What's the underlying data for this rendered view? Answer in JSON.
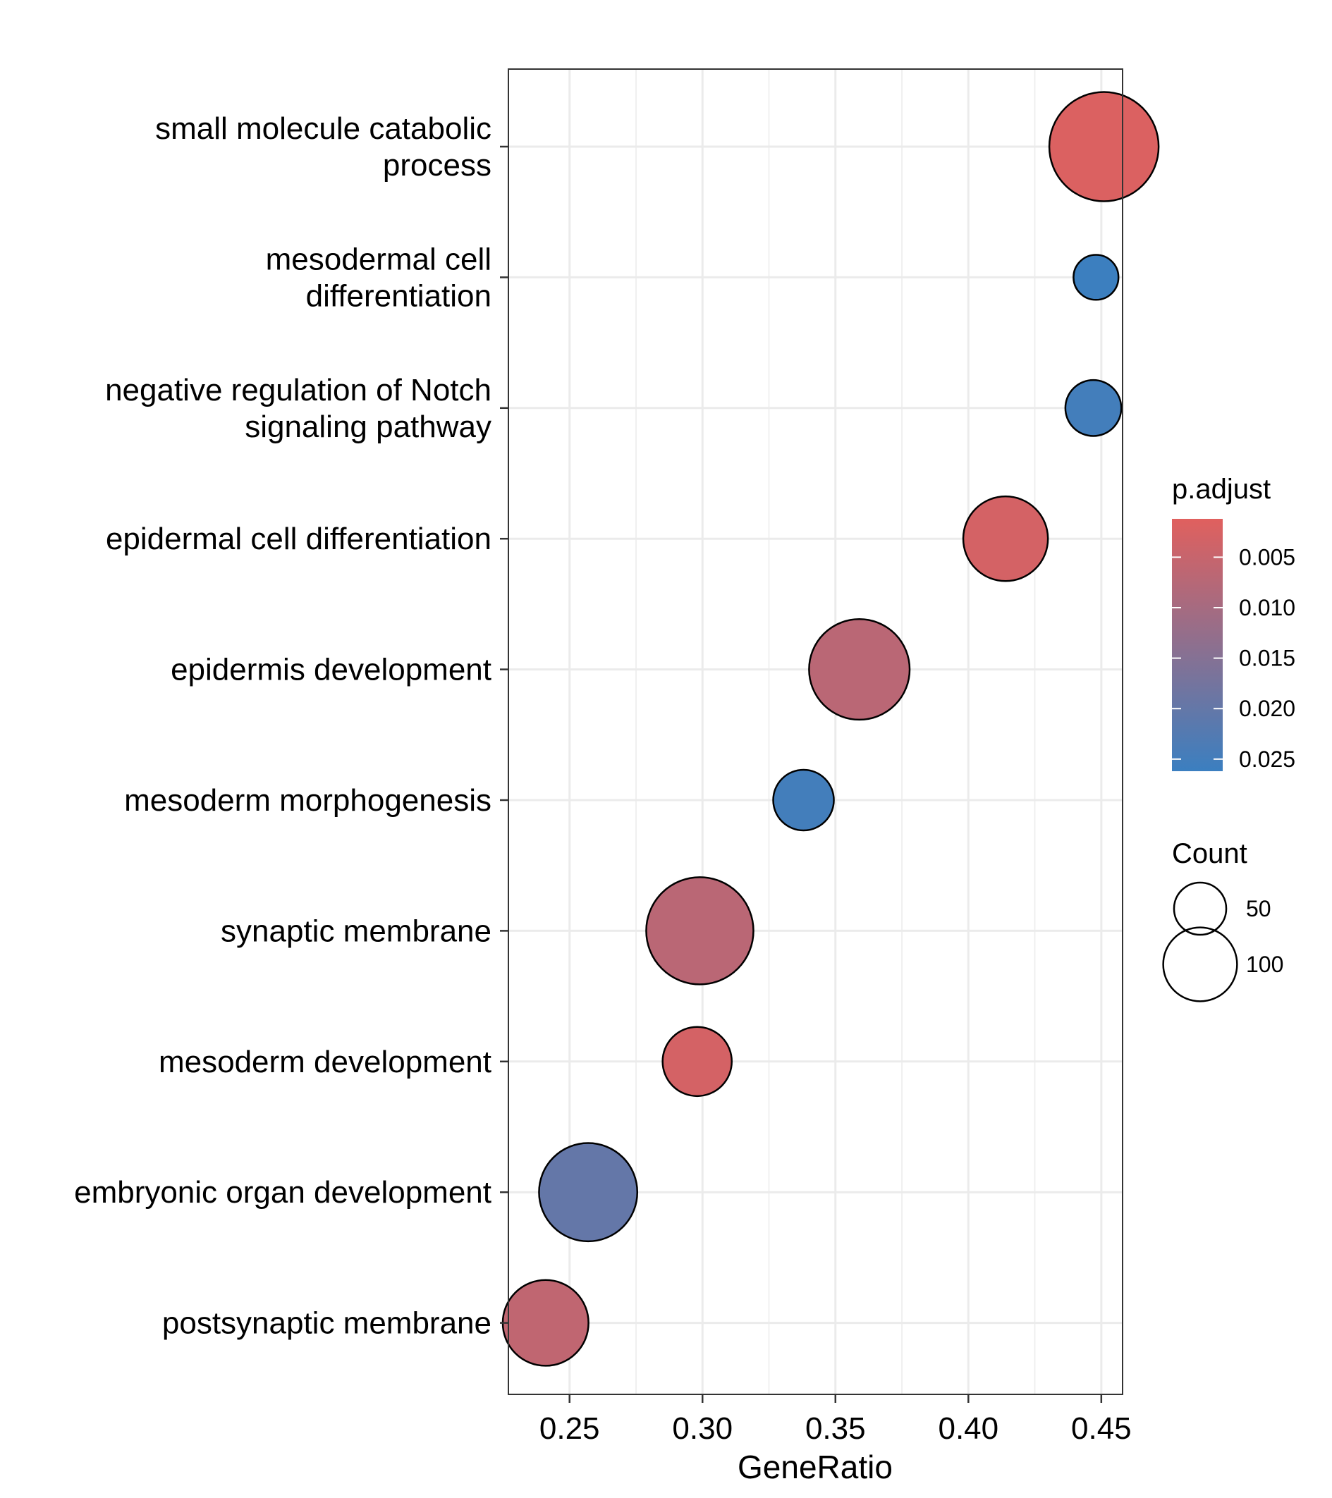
{
  "chart_data": {
    "type": "scatter",
    "xlabel": "GeneRatio",
    "ylabel": "",
    "xlim": [
      0.227,
      0.458
    ],
    "x_ticks": [
      "0.25",
      "0.30",
      "0.35",
      "0.40",
      "0.45"
    ],
    "x_tick_values": [
      0.25,
      0.3,
      0.35,
      0.4,
      0.45
    ],
    "grid": true,
    "categories": [
      "small molecule catabolic\nprocess",
      "mesodermal cell\ndifferentiation",
      "negative regulation of Notch\nsignaling pathway",
      "epidermal cell differentiation",
      "epidermis development",
      "mesoderm morphogenesis",
      "synaptic membrane",
      "mesoderm development",
      "embryonic organ development",
      "postsynaptic membrane"
    ],
    "points": [
      {
        "term": "small molecule catabolic process",
        "gene_ratio": 0.451,
        "count": 130,
        "p_adjust": 0.002
      },
      {
        "term": "mesodermal cell differentiation",
        "gene_ratio": 0.448,
        "count": 22,
        "p_adjust": 0.026
      },
      {
        "term": "negative regulation of Notch signaling pathway",
        "gene_ratio": 0.447,
        "count": 34,
        "p_adjust": 0.025
      },
      {
        "term": "epidermal cell differentiation",
        "gene_ratio": 0.414,
        "count": 78,
        "p_adjust": 0.003
      },
      {
        "term": "epidermis development",
        "gene_ratio": 0.359,
        "count": 110,
        "p_adjust": 0.007
      },
      {
        "term": "mesoderm morphogenesis",
        "gene_ratio": 0.338,
        "count": 40,
        "p_adjust": 0.025
      },
      {
        "term": "synaptic membrane",
        "gene_ratio": 0.299,
        "count": 125,
        "p_adjust": 0.007
      },
      {
        "term": "mesoderm development",
        "gene_ratio": 0.298,
        "count": 52,
        "p_adjust": 0.003
      },
      {
        "term": "embryonic organ development",
        "gene_ratio": 0.257,
        "count": 105,
        "p_adjust": 0.02
      },
      {
        "term": "postsynaptic membrane",
        "gene_ratio": 0.241,
        "count": 80,
        "p_adjust": 0.006
      }
    ],
    "color_legend": {
      "title": "p.adjust",
      "ticks": [
        "0.005",
        "0.010",
        "0.015",
        "0.020",
        "0.025"
      ],
      "tick_values": [
        0.005,
        0.01,
        0.015,
        0.02,
        0.025
      ],
      "range": [
        0.0012,
        0.0262
      ],
      "low_color": "#E0605E",
      "high_color": "#3B7FC0"
    },
    "size_legend": {
      "title": "Count",
      "values": [
        50,
        100
      ],
      "labels": [
        "50",
        "100"
      ]
    },
    "legend_position": "right"
  }
}
